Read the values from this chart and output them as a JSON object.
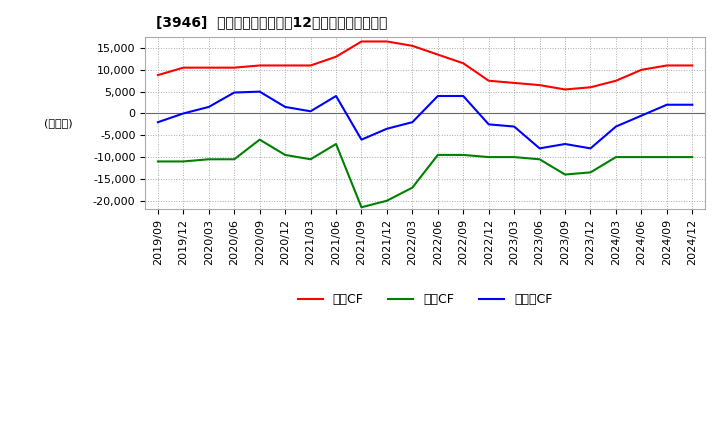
{
  "title": "[3946]  キャッシュフローの12か月移動合計の推移",
  "ylabel": "(百万円)",
  "ylim": [
    -22000,
    17500
  ],
  "yticks": [
    -20000,
    -15000,
    -10000,
    -5000,
    0,
    5000,
    10000,
    15000
  ],
  "x_labels": [
    "2019/09",
    "2019/12",
    "2020/03",
    "2020/06",
    "2020/09",
    "2020/12",
    "2021/03",
    "2021/06",
    "2021/09",
    "2021/12",
    "2022/03",
    "2022/06",
    "2022/09",
    "2022/12",
    "2023/03",
    "2023/06",
    "2023/09",
    "2023/12",
    "2024/03",
    "2024/06",
    "2024/09",
    "2024/12"
  ],
  "operating_cf": [
    8800,
    10500,
    10500,
    10500,
    11000,
    11000,
    11000,
    13000,
    16500,
    16500,
    15500,
    13500,
    11500,
    7500,
    7000,
    6500,
    5500,
    6000,
    7500,
    10000,
    11000,
    11000
  ],
  "investing_cf": [
    -11000,
    -11000,
    -10500,
    -10500,
    -6000,
    -9500,
    -10500,
    -7000,
    -21500,
    -20000,
    -17000,
    -9500,
    -9500,
    -10000,
    -10000,
    -10500,
    -14000,
    -13500,
    -10000,
    -10000,
    -10000,
    -10000
  ],
  "free_cf": [
    -2000,
    0,
    1500,
    4800,
    5000,
    1500,
    500,
    4000,
    -6000,
    -3500,
    -2000,
    4000,
    4000,
    -2500,
    -3000,
    -8000,
    -7000,
    -8000,
    -3000,
    -500,
    2000,
    2000
  ],
  "operating_color": "#ff0000",
  "investing_color": "#008000",
  "free_color": "#0000ff",
  "bg_color": "#ffffff",
  "plot_bg_color": "#ffffff",
  "grid_color": "#aaaaaa",
  "legend_labels": [
    "営業CF",
    "投資CF",
    "フリーCF"
  ]
}
